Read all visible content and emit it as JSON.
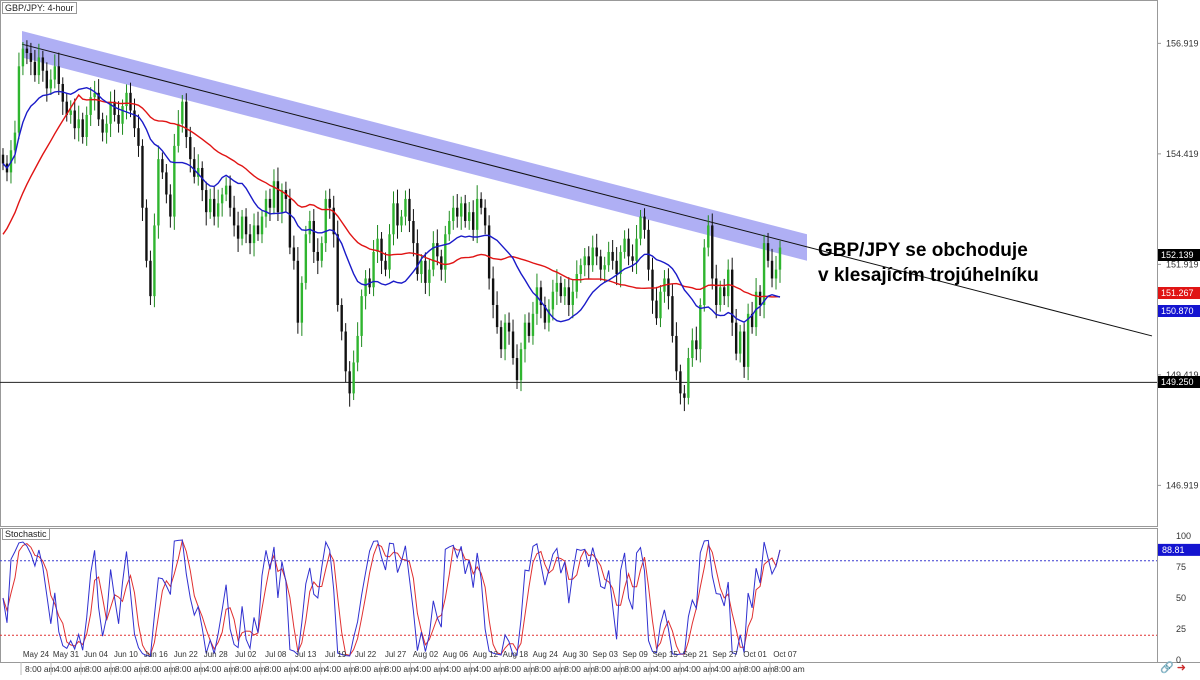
{
  "chart_data": [
    {
      "type": "candlestick",
      "title": "GBP/JPY: 4-hour",
      "annotation": [
        "GBP/JPY se obchoduje",
        "v klesajícím trojúhelníku"
      ],
      "ylim": [
        146.0,
        157.9
      ],
      "y_ticks": [
        "156.919",
        "154.419",
        "151.919",
        "149.419",
        "146.919"
      ],
      "y_tick_values": [
        156.919,
        154.419,
        151.919,
        149.419,
        146.919
      ],
      "price_tags": [
        {
          "label": "152.139",
          "value": 152.139,
          "color": "#000000",
          "text_color": "#ffffff"
        },
        {
          "label": "151.267",
          "value": 151.267,
          "color": "#e01414",
          "text_color": "#ffffff"
        },
        {
          "label": "150.870",
          "value": 150.87,
          "color": "#1414d0",
          "text_color": "#ffffff"
        },
        {
          "label": "149.250",
          "value": 149.25,
          "color": "#000000",
          "text_color": "#ffffff"
        }
      ],
      "support_level": 149.25,
      "trendline": {
        "start": 156.9,
        "end": 150.3
      },
      "resistance_band": {
        "start": [
          157.2,
          156.6
        ],
        "end": [
          152.6,
          152.0
        ]
      },
      "x_tick_labels": [
        "May 24",
        "May 31",
        "Jun 04",
        "Jun 10",
        "Jun 16",
        "Jun 22",
        "Jun 28",
        "Jul 02",
        "Jul 08",
        "Jul 13",
        "Jul 19",
        "Jul 22",
        "Jul 27",
        "Aug 02",
        "Aug 06",
        "Aug 12",
        "Aug 18",
        "Aug 24",
        "Aug 30",
        "Sep 03",
        "Sep 09",
        "Sep 15",
        "Sep 21",
        "Sep 27",
        "Oct 01",
        "Oct 07"
      ],
      "x_time_labels": [
        "8:00 am",
        "4:00 am",
        "8:00 am",
        "8:00 am",
        "8:00 am",
        "8:00 am",
        "4:00 am",
        "8:00 am",
        "8:00 am",
        "4:00 am",
        "4:00 am",
        "8:00 am",
        "8:00 am",
        "4:00 am",
        "4:00 am",
        "4:00 am",
        "8:00 am",
        "8:00 am",
        "8:00 am",
        "8:00 am",
        "8:00 am",
        "4:00 am",
        "4:00 am",
        "4:00 am",
        "8:00 am",
        "8:00 am"
      ],
      "candles_close": [
        154.2,
        154.0,
        154.5,
        154.9,
        156.4,
        156.8,
        156.7,
        156.5,
        156.2,
        156.6,
        156.3,
        155.9,
        156.1,
        156.4,
        156.0,
        155.6,
        155.3,
        155.4,
        155.0,
        155.2,
        154.8,
        155.3,
        155.7,
        155.8,
        155.2,
        154.9,
        155.1,
        155.6,
        155.3,
        155.1,
        155.5,
        155.8,
        155.4,
        155.0,
        154.6,
        153.2,
        152.0,
        151.2,
        152.8,
        154.3,
        154.0,
        153.5,
        153.0,
        154.6,
        155.1,
        155.6,
        154.8,
        154.3,
        153.9,
        154.1,
        153.6,
        153.1,
        153.4,
        153.0,
        153.3,
        153.5,
        153.7,
        153.2,
        152.8,
        152.5,
        153.0,
        152.6,
        152.4,
        152.8,
        152.6,
        153.0,
        153.4,
        153.2,
        153.8,
        153.1,
        153.6,
        153.4,
        152.3,
        152.0,
        150.6,
        151.5,
        152.6,
        152.9,
        152.2,
        152.0,
        152.4,
        153.4,
        153.2,
        152.6,
        151.0,
        150.4,
        149.5,
        149.0,
        149.7,
        150.3,
        151.2,
        151.6,
        151.4,
        152.2,
        152.5,
        152.0,
        151.8,
        152.6,
        153.3,
        152.8,
        153.0,
        153.4,
        152.9,
        152.4,
        151.7,
        152.0,
        151.5,
        151.8,
        152.4,
        152.1,
        151.8,
        152.6,
        152.9,
        153.2,
        153.0,
        153.3,
        152.9,
        153.1,
        152.7,
        153.4,
        153.2,
        152.8,
        151.6,
        151.0,
        150.5,
        150.0,
        150.6,
        150.4,
        149.8,
        149.3,
        150.0,
        150.6,
        150.3,
        150.8,
        151.4,
        151.0,
        150.6,
        150.9,
        151.3,
        151.5,
        151.2,
        151.4,
        151.0,
        151.3,
        151.7,
        151.9,
        152.1,
        151.9,
        152.3,
        152.1,
        151.8,
        151.9,
        152.2,
        152.0,
        151.7,
        152.2,
        152.5,
        152.1,
        152.0,
        152.5,
        153.0,
        152.7,
        151.8,
        151.1,
        150.7,
        151.3,
        151.6,
        151.2,
        150.3,
        149.5,
        149.0,
        148.9,
        149.8,
        150.2,
        150.0,
        151.0,
        152.3,
        152.8,
        151.6,
        151.0,
        151.4,
        151.2,
        151.8,
        150.6,
        149.9,
        150.4,
        149.6,
        150.8,
        150.5,
        151.3,
        151.0,
        152.4,
        152.0,
        151.6,
        151.8,
        152.3
      ]
    },
    {
      "type": "line",
      "title": "Stochastic",
      "ylim": [
        0,
        100
      ],
      "y_ticks": [
        "100",
        "75",
        "50",
        "25",
        "0"
      ],
      "y_tick_values": [
        100,
        75,
        50,
        25,
        0
      ],
      "overbought": 80,
      "oversold": 20,
      "current_label": "88.81",
      "current_value": 88.81
    }
  ]
}
